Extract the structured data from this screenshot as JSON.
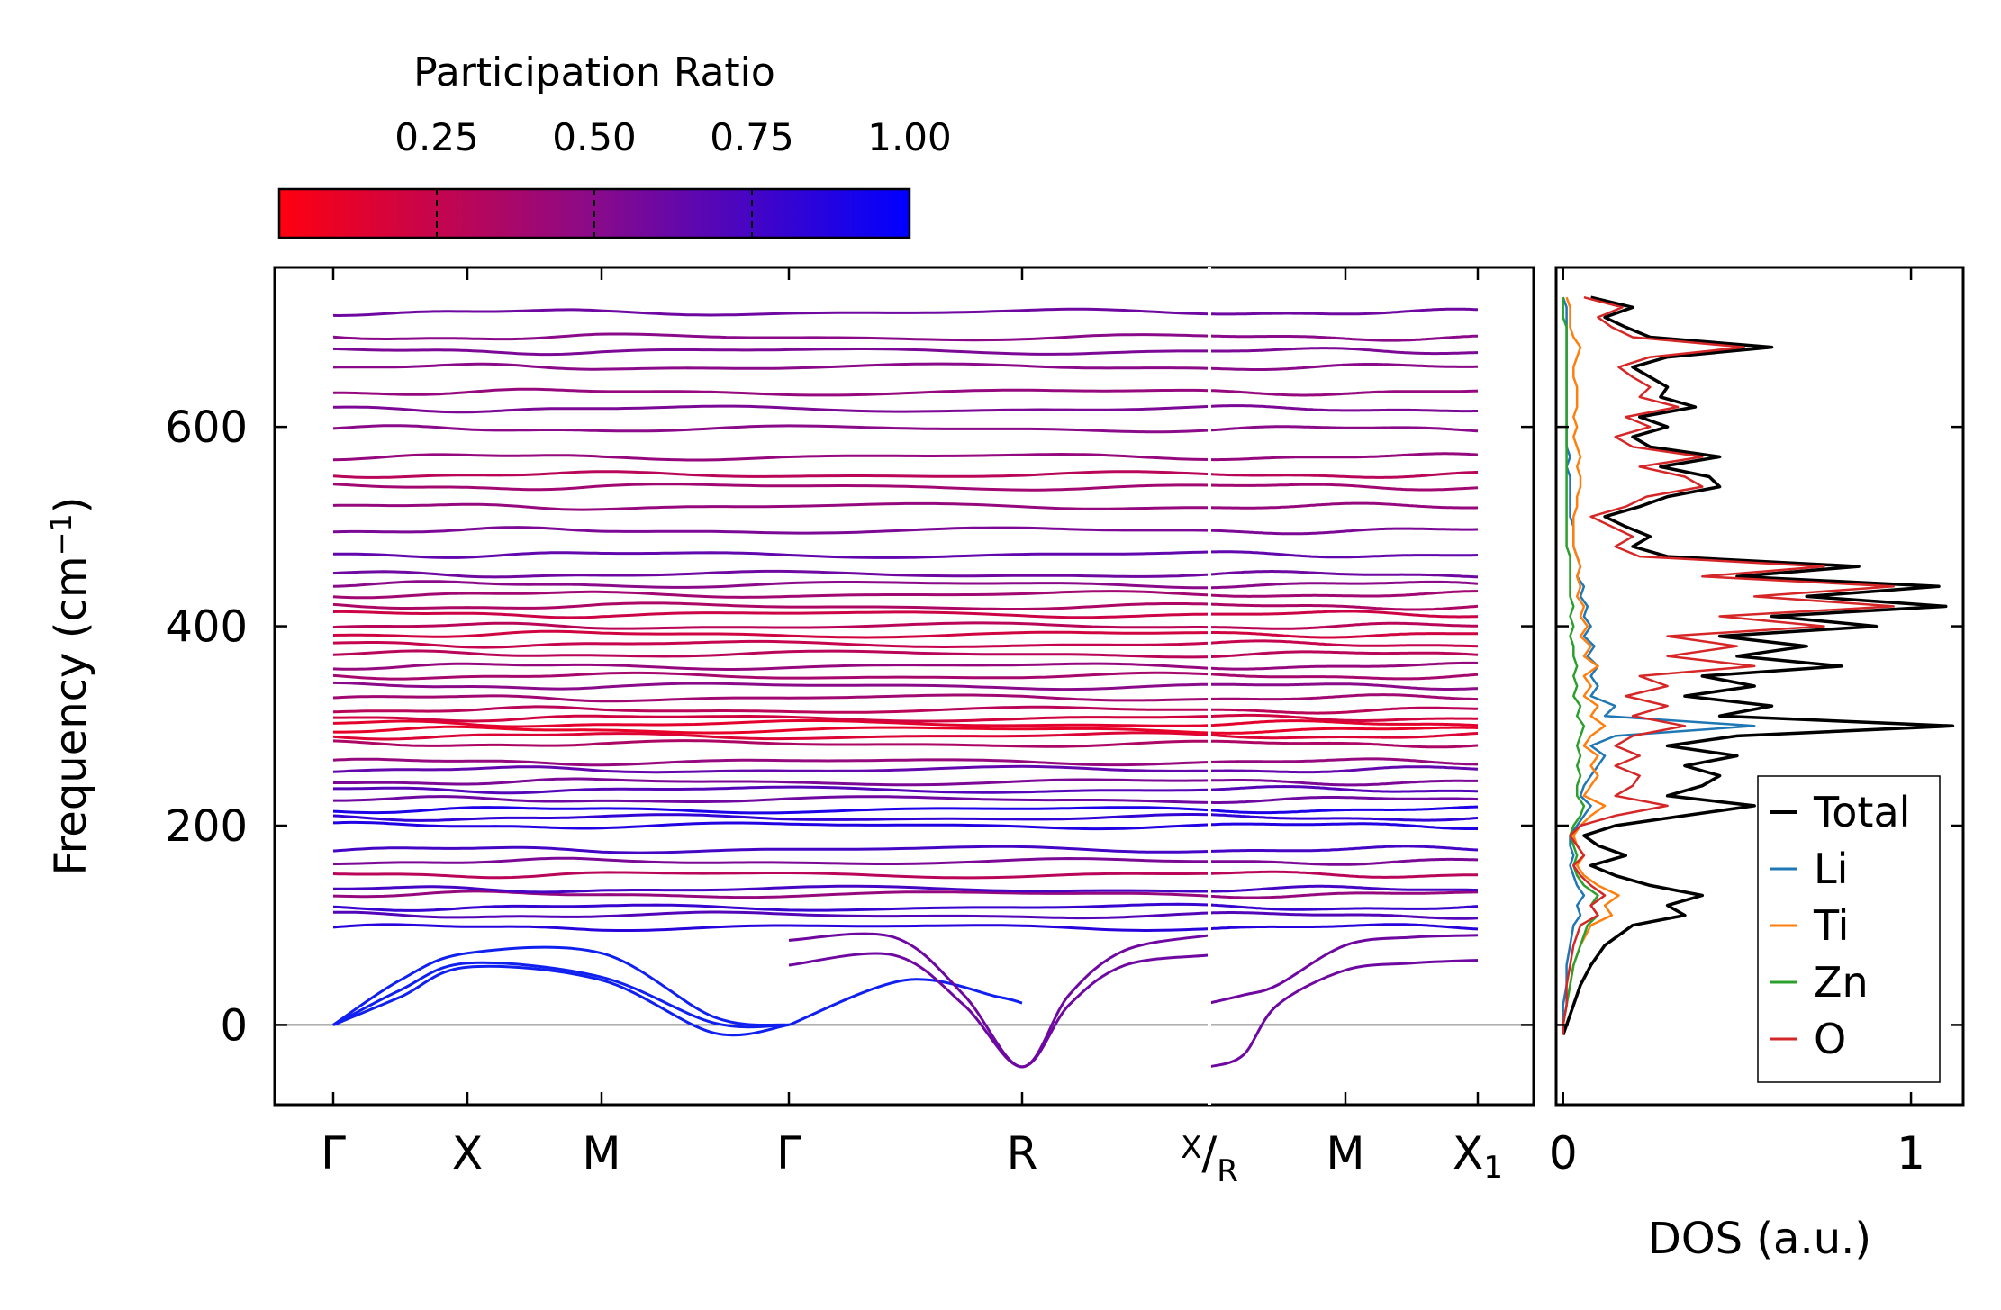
{
  "chart_data": [
    {
      "type": "line",
      "name": "phonon-band-structure",
      "ylabel_main": "Frequency (cm",
      "ylabel_sup": "−1",
      "ylabel_end": ")",
      "ylim": [
        -80,
        760
      ],
      "yticks": [
        0,
        200,
        400,
        600
      ],
      "ytick_labels": [
        "0",
        "200",
        "400",
        "600"
      ],
      "kpath": [
        "Γ",
        "X",
        "M",
        "Γ",
        "R",
        "X",
        "M",
        "X1"
      ],
      "break_label_top": "X",
      "break_label_bottom": "R",
      "x1_label_base": "X",
      "x1_label_sub": "1",
      "colorbar": {
        "title": "Participation Ratio",
        "range": [
          0.0,
          1.0
        ],
        "ticks": [
          0.25,
          0.5,
          0.75,
          1.0
        ],
        "tick_labels": [
          "0.25",
          "0.50",
          "0.75",
          "1.00"
        ],
        "color_low": "#ff0010",
        "color_mid": "#8a0a8a",
        "color_high": "#0000ff"
      },
      "zero_line_color": "#808080",
      "acoustic_color": "#1020ee",
      "flat_band_frequencies": [
        98,
        110,
        118,
        131,
        136,
        151,
        164,
        176,
        200,
        208,
        216,
        226,
        236,
        244,
        256,
        264,
        282,
        290,
        296,
        302,
        308,
        316,
        328,
        340,
        350,
        360,
        372,
        382,
        392,
        400,
        412,
        420,
        432,
        442,
        452,
        472,
        496,
        520,
        540,
        552,
        570,
        598,
        618,
        635,
        660,
        676,
        690,
        715
      ],
      "band_participation": [
        0.85,
        0.7,
        0.8,
        0.45,
        0.75,
        0.3,
        0.55,
        0.75,
        0.88,
        0.82,
        0.9,
        0.6,
        0.7,
        0.55,
        0.65,
        0.45,
        0.35,
        0.15,
        0.1,
        0.12,
        0.2,
        0.3,
        0.4,
        0.5,
        0.38,
        0.45,
        0.3,
        0.25,
        0.2,
        0.3,
        0.22,
        0.35,
        0.4,
        0.5,
        0.6,
        0.65,
        0.55,
        0.45,
        0.4,
        0.3,
        0.45,
        0.5,
        0.55,
        0.45,
        0.5,
        0.55,
        0.5,
        0.6
      ],
      "acoustic_bands": [
        {
          "name": "acoustic-1",
          "participation": 0.98,
          "x": [
            0,
            0.5,
            1,
            2,
            2.6,
            3
          ],
          "y": [
            0,
            45,
            72,
            72,
            8,
            0
          ]
        },
        {
          "name": "acoustic-2",
          "participation": 0.98,
          "x": [
            0,
            0.5,
            1,
            2,
            2.6,
            3
          ],
          "y": [
            0,
            35,
            62,
            48,
            2,
            0
          ]
        },
        {
          "name": "acoustic-3",
          "participation": 0.98,
          "x": [
            0,
            0.5,
            1,
            2,
            2.6,
            3
          ],
          "y": [
            0,
            28,
            58,
            45,
            -8,
            0
          ]
        },
        {
          "name": "acoustic-4",
          "participation": 0.95,
          "x": [
            3,
            3.5,
            3.9,
            4
          ],
          "y": [
            0,
            45,
            28,
            22
          ]
        },
        {
          "name": "soft-mode-1",
          "participation": 0.6,
          "x": [
            3,
            3.45,
            3.75,
            4,
            4.25,
            4.55,
            5
          ],
          "y": [
            60,
            70,
            20,
            -42,
            20,
            60,
            70
          ]
        },
        {
          "name": "soft-mode-2",
          "participation": 0.6,
          "x": [
            3,
            3.45,
            3.75,
            4,
            4.25,
            4.55,
            5
          ],
          "y": [
            85,
            88,
            30,
            -42,
            30,
            75,
            90
          ]
        },
        {
          "name": "soft-mode-3",
          "participation": 0.6,
          "x": [
            5,
            5.25,
            5.5,
            6,
            6.5,
            7
          ],
          "y": [
            -42,
            -30,
            20,
            55,
            62,
            65
          ]
        },
        {
          "name": "soft-mode-4",
          "participation": 0.6,
          "x": [
            5,
            5.25,
            5.5,
            6,
            6.5,
            7
          ],
          "y": [
            22,
            30,
            40,
            80,
            88,
            90
          ]
        }
      ]
    },
    {
      "type": "line",
      "name": "density-of-states",
      "xlabel": "DOS (a.u.)",
      "xlim": [
        -0.02,
        1.15
      ],
      "xticks": [
        0,
        1
      ],
      "xtick_labels": [
        "0",
        "1"
      ],
      "ylim": [
        -80,
        760
      ],
      "legend_position": "lower-right",
      "frequency_grid": [
        -10,
        0,
        20,
        40,
        60,
        80,
        100,
        110,
        120,
        130,
        140,
        150,
        160,
        170,
        180,
        190,
        200,
        210,
        220,
        230,
        240,
        250,
        260,
        270,
        280,
        290,
        300,
        310,
        320,
        330,
        340,
        350,
        360,
        370,
        380,
        390,
        400,
        410,
        420,
        430,
        440,
        450,
        460,
        470,
        480,
        490,
        500,
        510,
        520,
        530,
        540,
        550,
        560,
        570,
        580,
        590,
        600,
        610,
        620,
        630,
        640,
        650,
        660,
        670,
        680,
        690,
        700,
        710,
        720,
        730
      ],
      "series": [
        {
          "name": "Total",
          "color": "#000000",
          "values": [
            0,
            0.01,
            0.03,
            0.05,
            0.08,
            0.12,
            0.2,
            0.35,
            0.3,
            0.4,
            0.25,
            0.15,
            0.08,
            0.18,
            0.1,
            0.06,
            0.15,
            0.35,
            0.55,
            0.3,
            0.4,
            0.45,
            0.35,
            0.5,
            0.3,
            0.5,
            1.12,
            0.45,
            0.6,
            0.35,
            0.55,
            0.4,
            0.8,
            0.5,
            0.7,
            0.45,
            0.9,
            0.6,
            1.1,
            0.7,
            1.08,
            0.5,
            0.85,
            0.3,
            0.2,
            0.25,
            0.18,
            0.12,
            0.22,
            0.3,
            0.45,
            0.42,
            0.28,
            0.45,
            0.25,
            0.2,
            0.3,
            0.22,
            0.38,
            0.28,
            0.3,
            0.25,
            0.2,
            0.3,
            0.6,
            0.25,
            0.18,
            0.12,
            0.2,
            0.08
          ]
        },
        {
          "name": "Li",
          "color": "#1f77b4",
          "values": [
            0,
            0,
            0,
            0.01,
            0.01,
            0.02,
            0.03,
            0.05,
            0.04,
            0.06,
            0.04,
            0.03,
            0.02,
            0.03,
            0.02,
            0.02,
            0.04,
            0.06,
            0.08,
            0.05,
            0.06,
            0.08,
            0.1,
            0.12,
            0.08,
            0.15,
            0.55,
            0.12,
            0.15,
            0.08,
            0.1,
            0.08,
            0.1,
            0.07,
            0.09,
            0.06,
            0.08,
            0.06,
            0.07,
            0.05,
            0.06,
            0.04,
            0.05,
            0.04,
            0.03,
            0.03,
            0.03,
            0.02,
            0.02,
            0.02,
            0.02,
            0.02,
            0.01,
            0.02,
            0.01,
            0.01,
            0.01,
            0.01,
            0.01,
            0.01,
            0.01,
            0.01,
            0.01,
            0.01,
            0.01,
            0.01,
            0.01,
            0.01,
            0.01,
            0
          ]
        },
        {
          "name": "Ti",
          "color": "#ff7f0e",
          "values": [
            0,
            0,
            0.01,
            0.02,
            0.03,
            0.05,
            0.08,
            0.14,
            0.12,
            0.16,
            0.1,
            0.06,
            0.04,
            0.06,
            0.04,
            0.03,
            0.05,
            0.08,
            0.12,
            0.06,
            0.08,
            0.1,
            0.08,
            0.1,
            0.06,
            0.08,
            0.12,
            0.08,
            0.1,
            0.06,
            0.08,
            0.06,
            0.1,
            0.06,
            0.08,
            0.05,
            0.07,
            0.05,
            0.06,
            0.04,
            0.05,
            0.04,
            0.05,
            0.04,
            0.03,
            0.03,
            0.03,
            0.03,
            0.04,
            0.04,
            0.05,
            0.05,
            0.04,
            0.05,
            0.04,
            0.03,
            0.04,
            0.03,
            0.04,
            0.04,
            0.04,
            0.03,
            0.03,
            0.04,
            0.05,
            0.03,
            0.02,
            0.02,
            0.02,
            0.01
          ]
        },
        {
          "name": "Zn",
          "color": "#2ca02c",
          "values": [
            0,
            0,
            0.01,
            0.02,
            0.03,
            0.05,
            0.07,
            0.1,
            0.08,
            0.1,
            0.06,
            0.04,
            0.03,
            0.04,
            0.03,
            0.02,
            0.03,
            0.05,
            0.06,
            0.04,
            0.04,
            0.05,
            0.04,
            0.05,
            0.04,
            0.05,
            0.06,
            0.04,
            0.05,
            0.03,
            0.04,
            0.03,
            0.04,
            0.03,
            0.03,
            0.02,
            0.03,
            0.02,
            0.03,
            0.02,
            0.02,
            0.02,
            0.02,
            0.02,
            0.01,
            0.01,
            0.01,
            0.01,
            0.01,
            0.01,
            0.01,
            0.01,
            0.01,
            0.01,
            0.01,
            0.01,
            0.01,
            0.01,
            0.01,
            0.01,
            0.01,
            0.01,
            0.01,
            0.01,
            0.01,
            0.01,
            0.01,
            0,
            0,
            0
          ]
        },
        {
          "name": "O",
          "color": "#d62728",
          "values": [
            0,
            0,
            0.01,
            0.01,
            0.02,
            0.03,
            0.05,
            0.1,
            0.08,
            0.12,
            0.08,
            0.05,
            0.03,
            0.06,
            0.04,
            0.02,
            0.05,
            0.15,
            0.3,
            0.15,
            0.2,
            0.22,
            0.15,
            0.22,
            0.15,
            0.2,
            0.35,
            0.2,
            0.3,
            0.18,
            0.3,
            0.22,
            0.55,
            0.3,
            0.5,
            0.3,
            0.75,
            0.45,
            0.95,
            0.55,
            0.95,
            0.4,
            0.75,
            0.22,
            0.15,
            0.2,
            0.14,
            0.08,
            0.18,
            0.24,
            0.4,
            0.35,
            0.22,
            0.4,
            0.2,
            0.15,
            0.25,
            0.18,
            0.33,
            0.22,
            0.25,
            0.2,
            0.16,
            0.25,
            0.52,
            0.2,
            0.14,
            0.1,
            0.17,
            0.06
          ]
        }
      ]
    }
  ]
}
